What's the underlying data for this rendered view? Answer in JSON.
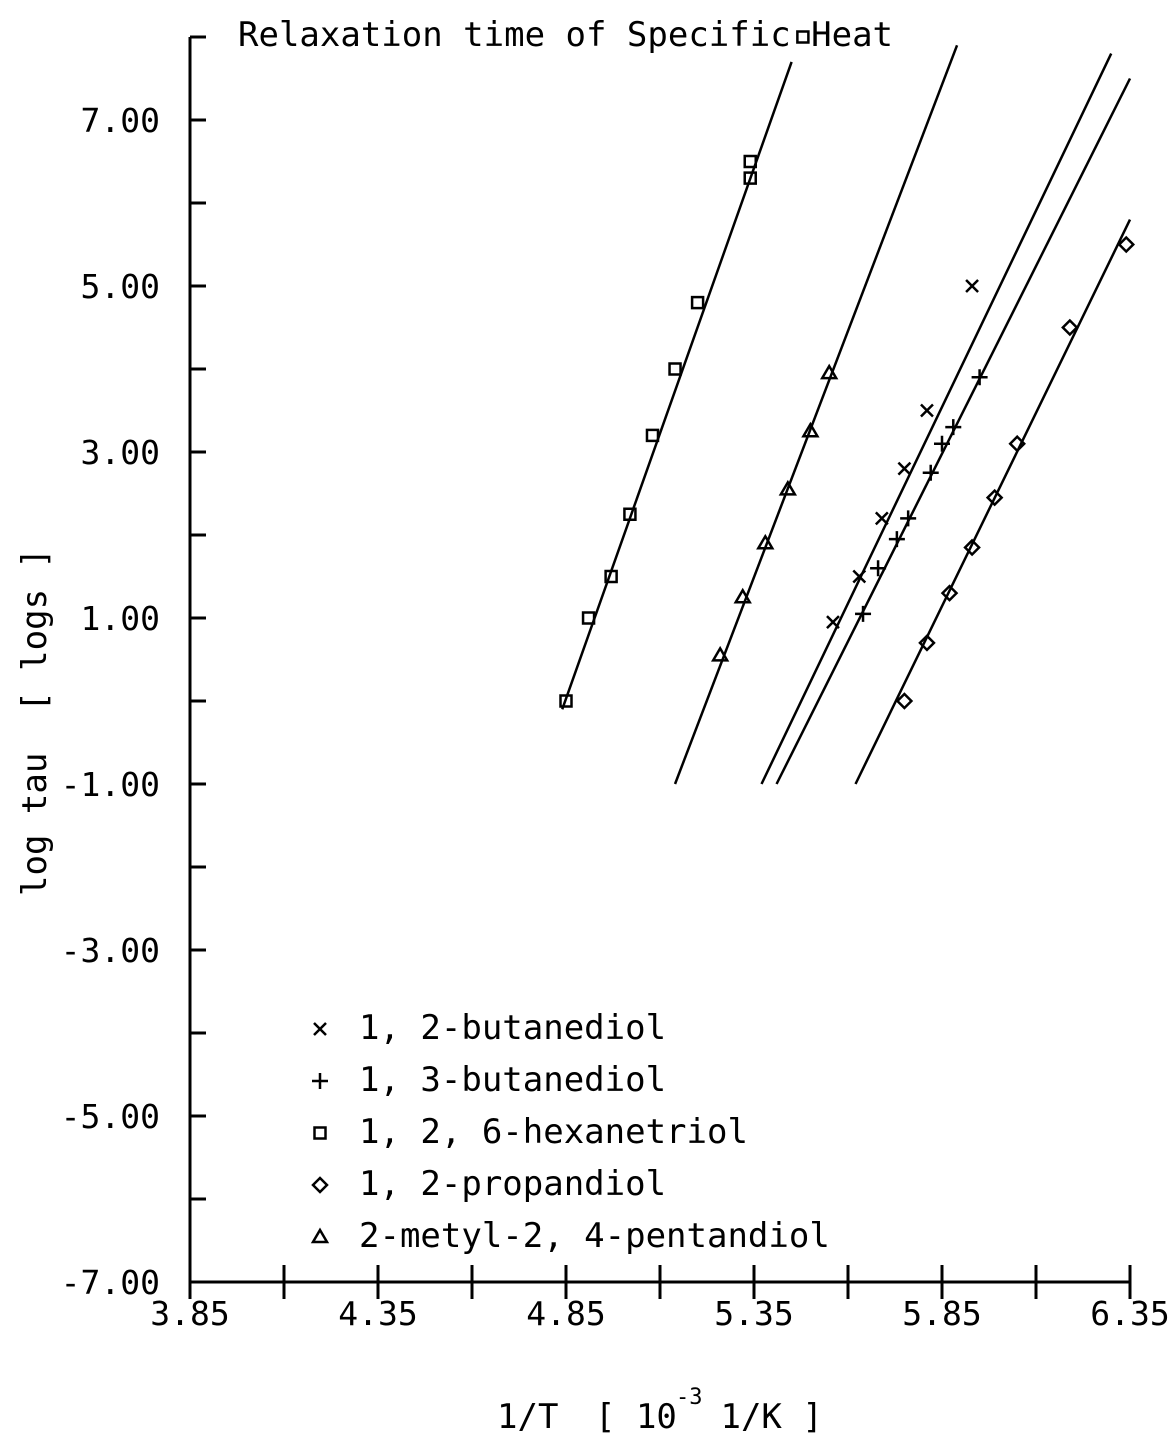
{
  "chart_data": {
    "type": "scatter",
    "title": "Relaxation time of Specific Heat",
    "xlabel": "1/T",
    "xlabel_unit_prefix": "[ 10",
    "xlabel_unit_exp": "-3",
    "xlabel_unit_suffix": " 1/K ]",
    "ylabel": "log tau  [ logs ]",
    "xlim": [
      3.85,
      6.35
    ],
    "ylim": [
      -7.0,
      8.0
    ],
    "x_ticks": [
      3.85,
      4.1,
      4.35,
      4.6,
      4.85,
      5.1,
      5.35,
      5.6,
      5.85,
      6.1,
      6.35
    ],
    "x_tick_labels": [
      "3.85",
      "4.35",
      "4.85",
      "5.35",
      "5.85",
      "6.35"
    ],
    "x_tick_label_values": [
      3.85,
      4.35,
      4.85,
      5.35,
      5.85,
      6.35
    ],
    "y_ticks": [
      -7,
      -6,
      -5,
      -4,
      -3,
      -2,
      -1,
      0,
      1,
      2,
      3,
      4,
      5,
      6,
      7,
      8
    ],
    "y_tick_labels": [
      "7.00",
      "5.00",
      "3.00",
      "1.00",
      "-1.00",
      "-3.00",
      "-5.00",
      "-7.00"
    ],
    "y_tick_label_values": [
      7,
      5,
      3,
      1,
      -1,
      -3,
      -5,
      -7
    ],
    "grid": false,
    "legend_position": "bottom-left",
    "series": [
      {
        "name": "1, 2-butanediol",
        "marker": "x",
        "points": [
          [
            5.56,
            0.95
          ],
          [
            5.63,
            1.5
          ],
          [
            5.69,
            2.2
          ],
          [
            5.75,
            2.8
          ],
          [
            5.81,
            3.5
          ],
          [
            5.93,
            5.0
          ]
        ],
        "fit": [
          [
            5.37,
            -1.0
          ],
          [
            6.3,
            7.8
          ]
        ]
      },
      {
        "name": "1, 3-butanediol",
        "marker": "+",
        "points": [
          [
            5.64,
            1.05
          ],
          [
            5.68,
            1.6
          ],
          [
            5.73,
            1.95
          ],
          [
            5.76,
            2.2
          ],
          [
            5.82,
            2.75
          ],
          [
            5.85,
            3.1
          ],
          [
            5.88,
            3.3
          ],
          [
            5.95,
            3.9
          ]
        ],
        "fit": [
          [
            5.41,
            -1.0
          ],
          [
            6.35,
            7.5
          ]
        ]
      },
      {
        "name": "1, 2, 6-hexanetriol",
        "marker": "square",
        "points": [
          [
            4.85,
            0.0
          ],
          [
            4.91,
            1.0
          ],
          [
            4.97,
            1.5
          ],
          [
            5.02,
            2.25
          ],
          [
            5.08,
            3.2
          ],
          [
            5.14,
            4.0
          ],
          [
            5.2,
            4.8
          ],
          [
            5.34,
            6.3
          ],
          [
            5.34,
            6.5
          ],
          [
            5.48,
            8.0
          ]
        ],
        "fit": [
          [
            4.84,
            -0.1
          ],
          [
            5.45,
            7.7
          ]
        ]
      },
      {
        "name": "1, 2-propandiol",
        "marker": "diamond",
        "points": [
          [
            5.75,
            0.0
          ],
          [
            5.81,
            0.7
          ],
          [
            5.87,
            1.3
          ],
          [
            5.93,
            1.85
          ],
          [
            5.99,
            2.45
          ],
          [
            6.05,
            3.1
          ],
          [
            6.19,
            4.5
          ],
          [
            6.34,
            5.5
          ]
        ],
        "fit": [
          [
            5.62,
            -1.0
          ],
          [
            6.35,
            5.8
          ]
        ]
      },
      {
        "name": "2-metyl-2, 4-pentandiol",
        "marker": "triangle",
        "points": [
          [
            5.26,
            0.55
          ],
          [
            5.32,
            1.25
          ],
          [
            5.38,
            1.9
          ],
          [
            5.44,
            2.55
          ],
          [
            5.5,
            3.25
          ],
          [
            5.55,
            3.95
          ]
        ],
        "fit": [
          [
            5.14,
            -1.0
          ],
          [
            5.89,
            7.9
          ]
        ]
      }
    ]
  }
}
